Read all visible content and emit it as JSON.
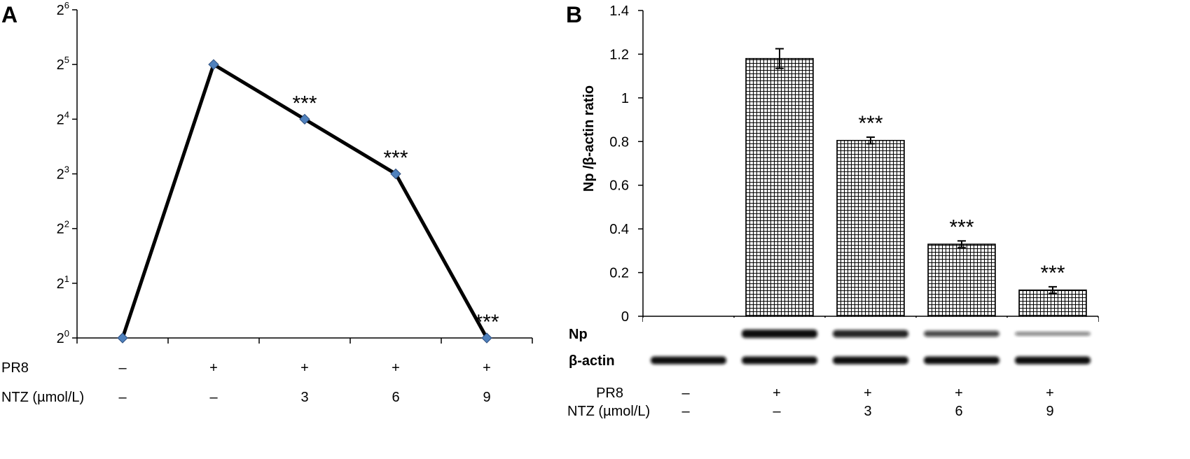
{
  "chart_data": [
    {
      "panel": "A",
      "type": "line",
      "ylabel": "",
      "y_scale": "log2",
      "ylim": [
        1,
        64
      ],
      "yticks": [
        1,
        2,
        4,
        8,
        16,
        32,
        64
      ],
      "ytick_base": "2",
      "ytick_exponents": [
        "0",
        "1",
        "2",
        "3",
        "4",
        "5",
        "6"
      ],
      "x": [
        1,
        2,
        3,
        4,
        5
      ],
      "values": [
        1,
        32,
        16,
        8,
        1
      ],
      "annotations": [
        "",
        "",
        "***",
        "***",
        "***"
      ],
      "line_color": "#000000",
      "marker_color": "#4F81BD",
      "conditions": [
        {
          "label": "PR8",
          "values": [
            "–",
            "+",
            "+",
            "+",
            "+"
          ]
        },
        {
          "label": "NTZ (µmol/L)",
          "values": [
            "–",
            "–",
            "3",
            "6",
            "9"
          ]
        }
      ]
    },
    {
      "panel": "B",
      "type": "bar",
      "ylabel": "Np /β-actin ratio",
      "ylim": [
        0,
        1.4
      ],
      "yticks": [
        "0",
        "0.2",
        "0.4",
        "0.6",
        "0.8",
        "1",
        "1.2",
        "1.4"
      ],
      "x": [
        1,
        2,
        3,
        4,
        5
      ],
      "values": [
        0,
        1.18,
        0.805,
        0.33,
        0.12
      ],
      "errors": [
        0,
        0.045,
        0.015,
        0.015,
        0.015
      ],
      "annotations": [
        "",
        "",
        "***",
        "***",
        "***"
      ],
      "bar_pattern": "grid",
      "blot": {
        "labels": [
          "Np",
          "β-actin"
        ],
        "np_intensity": [
          0,
          1,
          0.85,
          0.6,
          0.25
        ],
        "actin_intensity": [
          1,
          1,
          1,
          1,
          1
        ]
      },
      "conditions": [
        {
          "label": "PR8",
          "values": [
            "–",
            "+",
            "+",
            "+",
            "+"
          ]
        },
        {
          "label": "NTZ (µmol/L)",
          "values": [
            "–",
            "–",
            "3",
            "6",
            "9"
          ]
        }
      ]
    }
  ],
  "panels": {
    "a": "A",
    "b": "B"
  }
}
